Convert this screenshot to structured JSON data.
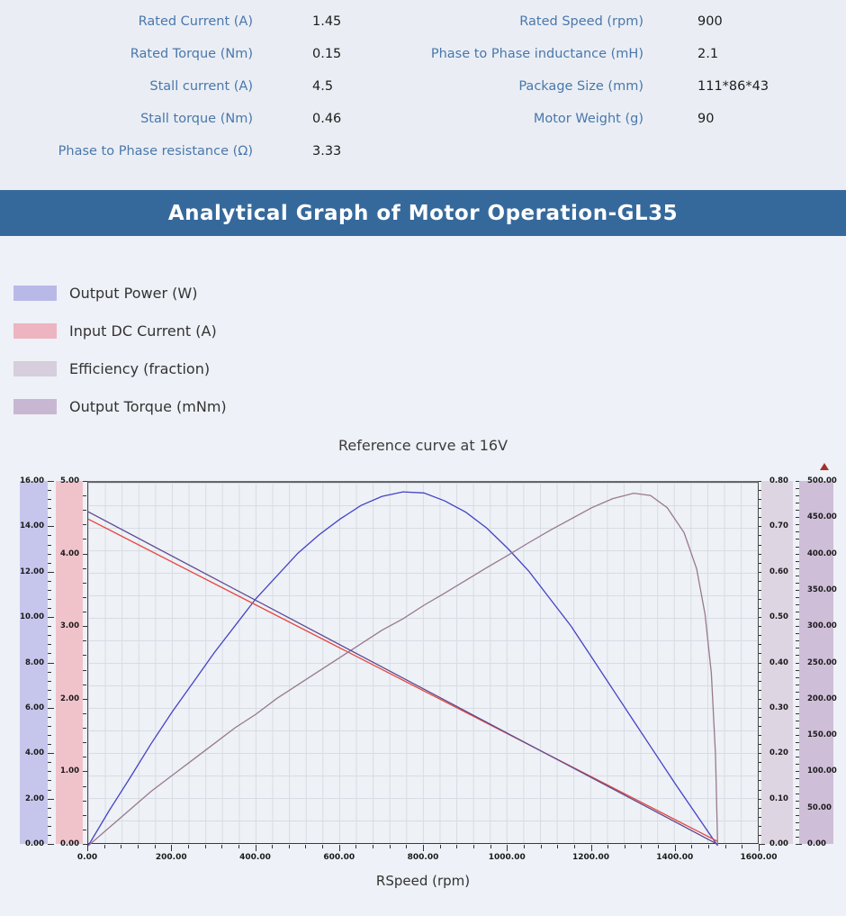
{
  "specs": {
    "left": [
      {
        "label": "Rated Current (A)",
        "value": "1.45"
      },
      {
        "label": "Rated  Torque (Nm)",
        "value": "0.15"
      },
      {
        "label": "Stall current (A)",
        "value": "4.5"
      },
      {
        "label": "Stall torque (Nm)",
        "value": "0.46"
      },
      {
        "label": "Phase to Phase resistance (Ω)",
        "value": "3.33"
      }
    ],
    "right": [
      {
        "label": "Rated Speed (rpm)",
        "value": "900"
      },
      {
        "label": "Phase to Phase inductance (mH)",
        "value": "2.1"
      },
      {
        "label": "Package Size  (mm)",
        "value": "111*86*43"
      },
      {
        "label": "Motor Weight  (g)",
        "value": "90"
      }
    ]
  },
  "banner": {
    "title": "Analytical Graph of Motor Operation-GL35",
    "bg": "#36699b"
  },
  "legend": [
    {
      "label": "Output Power (W)",
      "color": "#b9b9e8"
    },
    {
      "label": "Input DC Current (A)",
      "color": "#edb5c0"
    },
    {
      "label": "Efficiency (fraction)",
      "color": "#d6cedc"
    },
    {
      "label": "Output Torque (mNm)",
      "color": "#c8b7d2"
    }
  ],
  "chart_data": {
    "type": "line",
    "title": "Reference curve at 16V",
    "xlabel": "RSpeed (rpm)",
    "grid": true,
    "x_axis": {
      "min": 0,
      "max": 1600,
      "tick_labels": [
        "0.00",
        "200.00",
        "400.00",
        "600.00",
        "800.00",
        "1000.00",
        "1200.00",
        "1400.00",
        "1600.00"
      ],
      "minor_per_major": 5
    },
    "axes": [
      {
        "id": "power",
        "label": "Output Power (W)",
        "side": "left",
        "min": 0,
        "max": 16,
        "band_color": "#c6c6ed",
        "minor_per_major": 5,
        "tick_labels": [
          "16.00",
          "14.00",
          "12.00",
          "10.00",
          "8.00",
          "6.00",
          "4.00",
          "2.00",
          "0.00"
        ]
      },
      {
        "id": "current",
        "label": "Input DC Current (A)",
        "side": "left",
        "min": 0,
        "max": 5,
        "band_color": "#f0c3cb",
        "minor_per_major": 5,
        "tick_labels": [
          "5.00",
          "4.00",
          "3.00",
          "2.00",
          "1.00",
          "0.00"
        ]
      },
      {
        "id": "efficiency",
        "label": "Efficiency (fraction)",
        "side": "right",
        "min": 0,
        "max": 0.8,
        "band_color": "#ded5e2",
        "minor_per_major": 5,
        "tick_labels": [
          "0.80",
          "0.70",
          "0.60",
          "0.50",
          "0.40",
          "0.30",
          "0.20",
          "0.10",
          "0.00"
        ]
      },
      {
        "id": "torque",
        "label": "Output Torque (mNm)",
        "side": "right",
        "min": 0,
        "max": 500,
        "band_color": "#cfbed8",
        "minor_per_major": 5,
        "tick_labels": [
          "500.00",
          "450.00",
          "400.00",
          "350.00",
          "300.00",
          "250.00",
          "200.00",
          "150.00",
          "100.00",
          "50.00",
          "0.00"
        ]
      }
    ],
    "series": [
      {
        "name": "Output Power (W)",
        "axis": "power",
        "color": "#4443c4",
        "points": [
          [
            0,
            0
          ],
          [
            50,
            1.55
          ],
          [
            100,
            3.0
          ],
          [
            150,
            4.5
          ],
          [
            200,
            5.9
          ],
          [
            250,
            7.2
          ],
          [
            300,
            8.5
          ],
          [
            350,
            9.7
          ],
          [
            400,
            10.9
          ],
          [
            450,
            11.9
          ],
          [
            500,
            12.9
          ],
          [
            550,
            13.7
          ],
          [
            600,
            14.4
          ],
          [
            650,
            15.0
          ],
          [
            700,
            15.4
          ],
          [
            750,
            15.6
          ],
          [
            800,
            15.55
          ],
          [
            850,
            15.2
          ],
          [
            900,
            14.7
          ],
          [
            950,
            14.0
          ],
          [
            1000,
            13.1
          ],
          [
            1050,
            12.1
          ],
          [
            1100,
            10.9
          ],
          [
            1150,
            9.7
          ],
          [
            1200,
            8.3
          ],
          [
            1250,
            6.9
          ],
          [
            1300,
            5.5
          ],
          [
            1350,
            4.1
          ],
          [
            1400,
            2.7
          ],
          [
            1450,
            1.35
          ],
          [
            1500,
            0
          ]
        ]
      },
      {
        "name": "Input DC Current (A)",
        "axis": "current",
        "color": "#e6453d",
        "points": [
          [
            0,
            4.5
          ],
          [
            750,
            2.28
          ],
          [
            1500,
            0.06
          ]
        ]
      },
      {
        "name": "Efficiency (fraction)",
        "axis": "efficiency",
        "color": "#98798f",
        "points": [
          [
            0,
            0
          ],
          [
            50,
            0.04
          ],
          [
            100,
            0.08
          ],
          [
            150,
            0.12
          ],
          [
            200,
            0.155
          ],
          [
            250,
            0.19
          ],
          [
            300,
            0.225
          ],
          [
            350,
            0.26
          ],
          [
            400,
            0.29
          ],
          [
            450,
            0.325
          ],
          [
            500,
            0.355
          ],
          [
            550,
            0.385
          ],
          [
            600,
            0.415
          ],
          [
            650,
            0.445
          ],
          [
            700,
            0.475
          ],
          [
            750,
            0.5
          ],
          [
            800,
            0.53
          ],
          [
            850,
            0.557
          ],
          [
            900,
            0.585
          ],
          [
            950,
            0.613
          ],
          [
            1000,
            0.64
          ],
          [
            1050,
            0.668
          ],
          [
            1100,
            0.695
          ],
          [
            1150,
            0.72
          ],
          [
            1200,
            0.745
          ],
          [
            1250,
            0.765
          ],
          [
            1300,
            0.777
          ],
          [
            1340,
            0.772
          ],
          [
            1380,
            0.745
          ],
          [
            1420,
            0.69
          ],
          [
            1450,
            0.61
          ],
          [
            1470,
            0.51
          ],
          [
            1485,
            0.38
          ],
          [
            1495,
            0.2
          ],
          [
            1500,
            0
          ]
        ]
      },
      {
        "name": "Output Torque (mNm)",
        "axis": "torque",
        "color": "#5d4b92",
        "points": [
          [
            0,
            460
          ],
          [
            1500,
            2
          ]
        ]
      }
    ]
  }
}
